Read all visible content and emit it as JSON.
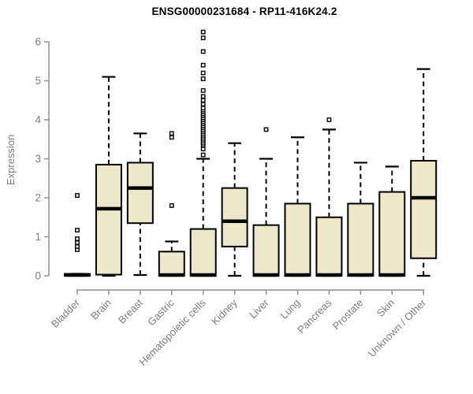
{
  "chart_data": {
    "type": "boxplot",
    "title": "ENSG00000231684 - RP11-416K24.2",
    "ylabel": "Expression",
    "xlabel": "",
    "ylim": [
      0,
      6.3
    ],
    "yticks": [
      0,
      1,
      2,
      3,
      4,
      5,
      6
    ],
    "grid": false,
    "legend": null,
    "colors": {
      "box_fill": "#EDE8CD",
      "box_border": "#000000",
      "median": "#000000",
      "whisker": "#000000",
      "outlier": "#000000",
      "axis_line": "#909090",
      "tick_text": "#7D7D7D",
      "title_text": "#000000"
    },
    "categories": [
      "Bladder",
      "Brain",
      "Breast",
      "Gastric",
      "Hematopoietic cells",
      "Kidney",
      "Liver",
      "Lung",
      "Pancreas",
      "Prostate",
      "Skin",
      "Unknown / Other"
    ],
    "boxes": [
      {
        "category": "Bladder",
        "whisker_low": 0,
        "q1": 0,
        "median": 0.02,
        "q3": 0.05,
        "whisker_high": 0.05,
        "outliers": [
          0.67,
          0.75,
          0.85,
          0.95,
          1.17,
          2.06
        ]
      },
      {
        "category": "Brain",
        "whisker_low": 0,
        "q1": 0.03,
        "median": 1.72,
        "q3": 2.85,
        "whisker_high": 5.1,
        "outliers": []
      },
      {
        "category": "Breast",
        "whisker_low": 0.02,
        "q1": 1.35,
        "median": 2.25,
        "q3": 2.9,
        "whisker_high": 3.65,
        "outliers": []
      },
      {
        "category": "Gastric",
        "whisker_low": 0,
        "q1": 0,
        "median": 0.02,
        "q3": 0.62,
        "whisker_high": 0.88,
        "outliers": [
          1.8,
          3.55,
          3.65
        ]
      },
      {
        "category": "Hematopoietic cells",
        "whisker_low": 0,
        "q1": 0,
        "median": 0.02,
        "q3": 1.2,
        "whisker_high": 3.0,
        "outliers": [
          3.1,
          3.25,
          3.35,
          3.4,
          3.45,
          3.5,
          3.55,
          3.6,
          3.65,
          3.7,
          3.75,
          3.8,
          3.85,
          3.9,
          3.95,
          4.0,
          4.05,
          4.1,
          4.15,
          4.2,
          4.25,
          4.3,
          4.4,
          4.5,
          4.6,
          4.75,
          5.05,
          5.2,
          5.4,
          5.75,
          6.1,
          6.25
        ]
      },
      {
        "category": "Kidney",
        "whisker_low": 0,
        "q1": 0.75,
        "median": 1.4,
        "q3": 2.25,
        "whisker_high": 3.4,
        "outliers": []
      },
      {
        "category": "Liver",
        "whisker_low": 0,
        "q1": 0,
        "median": 0.02,
        "q3": 1.3,
        "whisker_high": 3.0,
        "outliers": [
          3.75
        ]
      },
      {
        "category": "Lung",
        "whisker_low": 0,
        "q1": 0,
        "median": 0.02,
        "q3": 1.85,
        "whisker_high": 3.55,
        "outliers": []
      },
      {
        "category": "Pancreas",
        "whisker_low": 0,
        "q1": 0,
        "median": 0.02,
        "q3": 1.5,
        "whisker_high": 3.75,
        "outliers": [
          4.0
        ]
      },
      {
        "category": "Prostate",
        "whisker_low": 0,
        "q1": 0,
        "median": 0.02,
        "q3": 1.85,
        "whisker_high": 2.9,
        "outliers": []
      },
      {
        "category": "Skin",
        "whisker_low": 0,
        "q1": 0,
        "median": 0.02,
        "q3": 2.15,
        "whisker_high": 2.8,
        "outliers": []
      },
      {
        "category": "Unknown / Other",
        "whisker_low": 0,
        "q1": 0.45,
        "median": 2.0,
        "q3": 2.95,
        "whisker_high": 5.3,
        "outliers": []
      }
    ]
  }
}
